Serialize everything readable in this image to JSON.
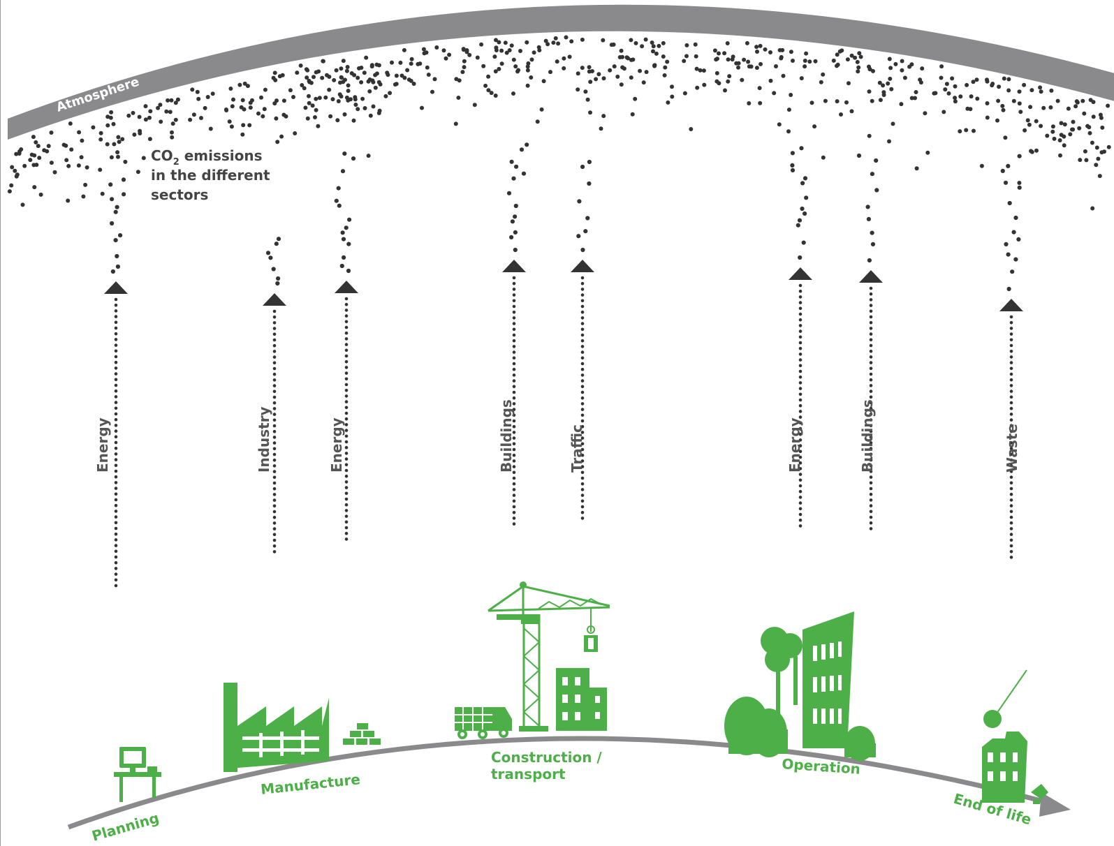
{
  "atmosphere_label": "Atmosphere",
  "co2_label": {
    "line1_prefix": "CO",
    "line1_sub": "2",
    "line1_suffix": " emissions",
    "line2": "in the different",
    "line3": "sectors"
  },
  "sectors": [
    {
      "id": "energy-1",
      "label": "Energy"
    },
    {
      "id": "industry",
      "label": "Industry"
    },
    {
      "id": "energy-2",
      "label": "Energy"
    },
    {
      "id": "buildings-1",
      "label": "Buildings"
    },
    {
      "id": "traffic",
      "label": "Traffic"
    },
    {
      "id": "energy-3",
      "label": "Energy"
    },
    {
      "id": "buildings-2",
      "label": "Buildings"
    },
    {
      "id": "waste",
      "label": "Waste"
    }
  ],
  "lifecycle_stages": [
    {
      "id": "planning",
      "label": "Planning"
    },
    {
      "id": "manufacture",
      "label": "Manufacture"
    },
    {
      "id": "construction",
      "label_line1": "Construction /",
      "label_line2": "transport"
    },
    {
      "id": "operation",
      "label": "Operation"
    },
    {
      "id": "end-of-life",
      "label": "End of life"
    }
  ],
  "colors": {
    "green": "#4caf47",
    "atmosphere": "#8a8a8c",
    "dots": "#333333",
    "arrow": "#333333",
    "ground": "#8a8a8c"
  },
  "icons": [
    "computer-desk-icon",
    "factory-icon",
    "bricks-icon",
    "truck-icon",
    "crane-icon",
    "building-icon",
    "tree-icon",
    "office-tower-icon",
    "wrecking-ball-icon"
  ]
}
